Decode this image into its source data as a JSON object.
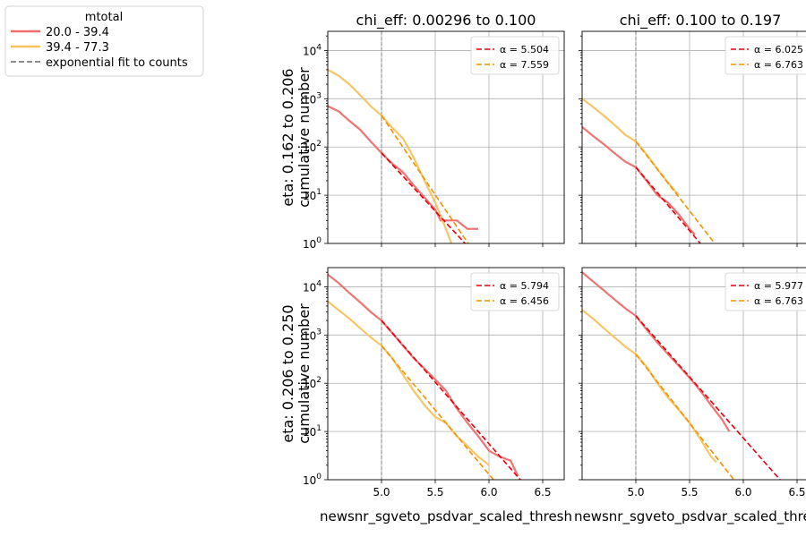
{
  "legend": {
    "title": "mtotal",
    "placement": "upper-left",
    "entries": [
      {
        "label": "20.0 - 39.4",
        "color": "#f06d6d",
        "style": "solid"
      },
      {
        "label": "39.4 - 77.3",
        "color": "#f7c35f",
        "style": "solid"
      },
      {
        "label": "exponential fit to counts",
        "color": "#666666",
        "style": "dashed"
      }
    ]
  },
  "shared": {
    "type": "line",
    "xlim": [
      4.5,
      6.7
    ],
    "ylim": [
      1,
      25000
    ],
    "yscale": "log",
    "xticks": [
      5.0,
      5.5,
      6.0,
      6.5
    ],
    "xtick_labels": [
      "5.0",
      "5.5",
      "6.0",
      "6.5"
    ],
    "yticks": [
      1,
      10,
      100,
      1000,
      10000
    ],
    "ytick_labels": [
      "1",
      "1",
      "1",
      "1",
      "1"
    ],
    "ytick_exponents": [
      "0",
      "1",
      "2",
      "3",
      "4"
    ],
    "threshold_x": 5.0,
    "grid": true,
    "xlabel": "newsnr_sgveto_psdvar_scaled_thresh",
    "colors": {
      "low": "#f06d6d",
      "high": "#f7c35f",
      "fit_low": "#e8000b",
      "fit_high": "#f39200",
      "threshold": "#999999"
    }
  },
  "col_titles": [
    "chi_eff: 0.00296 to 0.100",
    "chi_eff: 0.100 to 0.197"
  ],
  "row_labels": [
    [
      "eta: 0.162 to 0.206",
      "cumulative number"
    ],
    [
      "eta: 0.206 to 0.250",
      "cumulative number"
    ]
  ],
  "chart_data": [
    {
      "type": "line",
      "panel": "row1-col1",
      "series": [
        {
          "name": "20.0 - 39.4",
          "x": [
            4.5,
            4.6,
            4.7,
            4.8,
            4.9,
            5.0,
            5.1,
            5.2,
            5.3,
            5.4,
            5.5,
            5.55,
            5.6,
            5.7,
            5.8,
            5.9
          ],
          "y": [
            700,
            550,
            350,
            230,
            130,
            75,
            45,
            30,
            16,
            9,
            5,
            3,
            3,
            3,
            2,
            2
          ]
        },
        {
          "name": "39.4 - 77.3",
          "x": [
            4.5,
            4.6,
            4.7,
            4.8,
            4.9,
            5.0,
            5.1,
            5.2,
            5.3,
            5.4,
            5.5,
            5.6,
            5.65
          ],
          "y": [
            4000,
            3000,
            2000,
            1200,
            700,
            450,
            250,
            150,
            60,
            20,
            7,
            2,
            1
          ]
        }
      ],
      "fits": [
        {
          "label": "α = 5.504",
          "x": [
            5.0,
            5.87
          ],
          "y": [
            75,
            0.6
          ]
        },
        {
          "label": "α = 7.559",
          "x": [
            5.0,
            5.82
          ],
          "y": [
            450,
            0.9
          ]
        }
      ]
    },
    {
      "type": "line",
      "panel": "row1-col2",
      "series": [
        {
          "name": "20.0 - 39.4",
          "x": [
            4.5,
            4.6,
            4.7,
            4.8,
            4.9,
            5.0,
            5.1,
            5.2,
            5.3,
            5.4,
            5.5,
            5.55
          ],
          "y": [
            260,
            170,
            115,
            75,
            50,
            38,
            20,
            10,
            7,
            4,
            2,
            1.5
          ]
        },
        {
          "name": "39.4 - 77.3",
          "x": [
            4.5,
            4.6,
            4.7,
            4.8,
            4.9,
            5.0,
            5.1,
            5.2,
            5.3,
            5.4
          ],
          "y": [
            1000,
            680,
            450,
            290,
            180,
            130,
            70,
            35,
            18,
            10
          ]
        }
      ],
      "fits": [
        {
          "label": "α = 6.025",
          "x": [
            5.0,
            5.6
          ],
          "y": [
            38,
            1.0
          ]
        },
        {
          "label": "α = 6.763",
          "x": [
            5.0,
            5.75
          ],
          "y": [
            130,
            0.9
          ]
        }
      ]
    },
    {
      "type": "line",
      "panel": "row2-col1",
      "series": [
        {
          "name": "20.0 - 39.4",
          "x": [
            4.5,
            4.6,
            4.7,
            4.8,
            4.9,
            5.0,
            5.1,
            5.2,
            5.3,
            5.4,
            5.5,
            5.6,
            5.7,
            5.8,
            5.9,
            6.0,
            6.1,
            6.2,
            6.27
          ],
          "y": [
            18000,
            12000,
            7500,
            4800,
            3000,
            2000,
            1100,
            600,
            330,
            200,
            120,
            70,
            30,
            15,
            8,
            4,
            3,
            2.5,
            1.2
          ]
        },
        {
          "name": "39.4 - 77.3",
          "x": [
            4.5,
            4.6,
            4.7,
            4.8,
            4.9,
            5.0,
            5.1,
            5.2,
            5.3,
            5.4,
            5.5,
            5.6,
            5.7,
            5.8,
            5.9,
            6.0
          ],
          "y": [
            5000,
            3300,
            2200,
            1400,
            900,
            600,
            330,
            150,
            70,
            35,
            20,
            15,
            8,
            5,
            3,
            2
          ]
        }
      ],
      "fits": [
        {
          "label": "α = 5.794",
          "x": [
            5.0,
            6.3
          ],
          "y": [
            2000,
            0.95
          ]
        },
        {
          "label": "α = 6.456",
          "x": [
            5.0,
            6.05
          ],
          "y": [
            600,
            0.95
          ]
        }
      ]
    },
    {
      "type": "line",
      "panel": "row2-col2",
      "series": [
        {
          "name": "20.0 - 39.4",
          "x": [
            4.5,
            4.6,
            4.7,
            4.8,
            4.9,
            5.0,
            5.1,
            5.2,
            5.3,
            5.4,
            5.5,
            5.6,
            5.7,
            5.8,
            5.87
          ],
          "y": [
            20000,
            13000,
            8500,
            5500,
            3600,
            2500,
            1300,
            700,
            400,
            230,
            130,
            70,
            35,
            18,
            10
          ]
        },
        {
          "name": "39.4 - 77.3",
          "x": [
            4.5,
            4.6,
            4.7,
            4.8,
            4.9,
            5.0,
            5.1,
            5.2,
            5.3,
            5.4,
            5.5,
            5.6,
            5.7,
            5.75
          ],
          "y": [
            3300,
            2200,
            1400,
            900,
            580,
            400,
            220,
            100,
            50,
            28,
            15,
            7,
            3,
            2.3
          ]
        }
      ],
      "fits": [
        {
          "label": "α = 5.977",
          "x": [
            5.0,
            6.35
          ],
          "y": [
            2500,
            0.95
          ]
        },
        {
          "label": "α = 6.763",
          "x": [
            5.0,
            5.92
          ],
          "y": [
            400,
            0.95
          ]
        }
      ]
    }
  ]
}
